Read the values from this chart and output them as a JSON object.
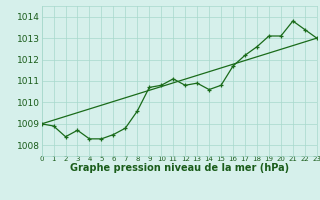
{
  "title": "Graphe pression niveau de la mer (hPa)",
  "bg_color": "#d6f0eb",
  "grid_color": "#a8d8cc",
  "line_color": "#1a6b1a",
  "marker_color": "#1a6b1a",
  "xmin": 0,
  "xmax": 23,
  "ymin": 1007.5,
  "ymax": 1014.5,
  "yticks": [
    1008,
    1009,
    1010,
    1011,
    1012,
    1013,
    1014
  ],
  "xticks": [
    0,
    1,
    2,
    3,
    4,
    5,
    6,
    7,
    8,
    9,
    10,
    11,
    12,
    13,
    14,
    15,
    16,
    17,
    18,
    19,
    20,
    21,
    22,
    23
  ],
  "series1_x": [
    0,
    1,
    2,
    3,
    4,
    5,
    6,
    7,
    8,
    9,
    10,
    11,
    12,
    13,
    14,
    15,
    16,
    17,
    18,
    19,
    20,
    21,
    22,
    23
  ],
  "series1_y": [
    1009.0,
    1008.9,
    1008.4,
    1008.7,
    1008.3,
    1008.3,
    1008.5,
    1008.8,
    1009.6,
    1010.7,
    1010.8,
    1011.1,
    1010.8,
    1010.9,
    1010.6,
    1010.8,
    1011.7,
    1012.2,
    1012.6,
    1013.1,
    1013.1,
    1013.8,
    1013.4,
    1013.0
  ],
  "series2_x": [
    0,
    23
  ],
  "series2_y": [
    1009.0,
    1013.0
  ],
  "font_color": "#1a5c1a",
  "font_size_x": 5.0,
  "font_size_y": 6.5,
  "font_size_title": 7.0
}
